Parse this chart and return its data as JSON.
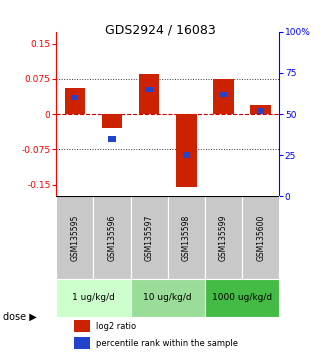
{
  "title": "GDS2924 / 16083",
  "samples": [
    "GSM135595",
    "GSM135596",
    "GSM135597",
    "GSM135598",
    "GSM135599",
    "GSM135600"
  ],
  "log2_ratio": [
    0.055,
    -0.03,
    0.085,
    -0.155,
    0.075,
    0.02
  ],
  "percentile_rank": [
    0.6,
    0.35,
    0.65,
    0.25,
    0.62,
    0.52
  ],
  "doses": [
    {
      "label": "1 ug/kg/d",
      "samples": [
        0,
        1
      ],
      "color": "#ccffcc"
    },
    {
      "label": "10 ug/kg/d",
      "samples": [
        2,
        3
      ],
      "color": "#99dd99"
    },
    {
      "label": "1000 ug/kg/d",
      "samples": [
        4,
        5
      ],
      "color": "#44bb44"
    }
  ],
  "ylim_left": [
    -0.175,
    0.175
  ],
  "yticks_left": [
    -0.15,
    -0.075,
    0,
    0.075,
    0.15
  ],
  "ytick_labels_left": [
    "-0.15",
    "-0.075",
    "0",
    "0.075",
    "0.15"
  ],
  "yticks_right_pct": [
    0,
    25,
    50,
    75,
    100
  ],
  "ytick_labels_right": [
    "0",
    "25",
    "50",
    "75",
    "100%"
  ],
  "bar_color_red": "#cc2200",
  "bar_color_blue": "#2244cc",
  "sample_bg_color": "#c8c8c8",
  "zero_line_color": "#cc0000",
  "dotted_line_color": "#333333",
  "bar_width": 0.55,
  "blue_bar_width": 0.2,
  "blue_bar_height": 0.012
}
